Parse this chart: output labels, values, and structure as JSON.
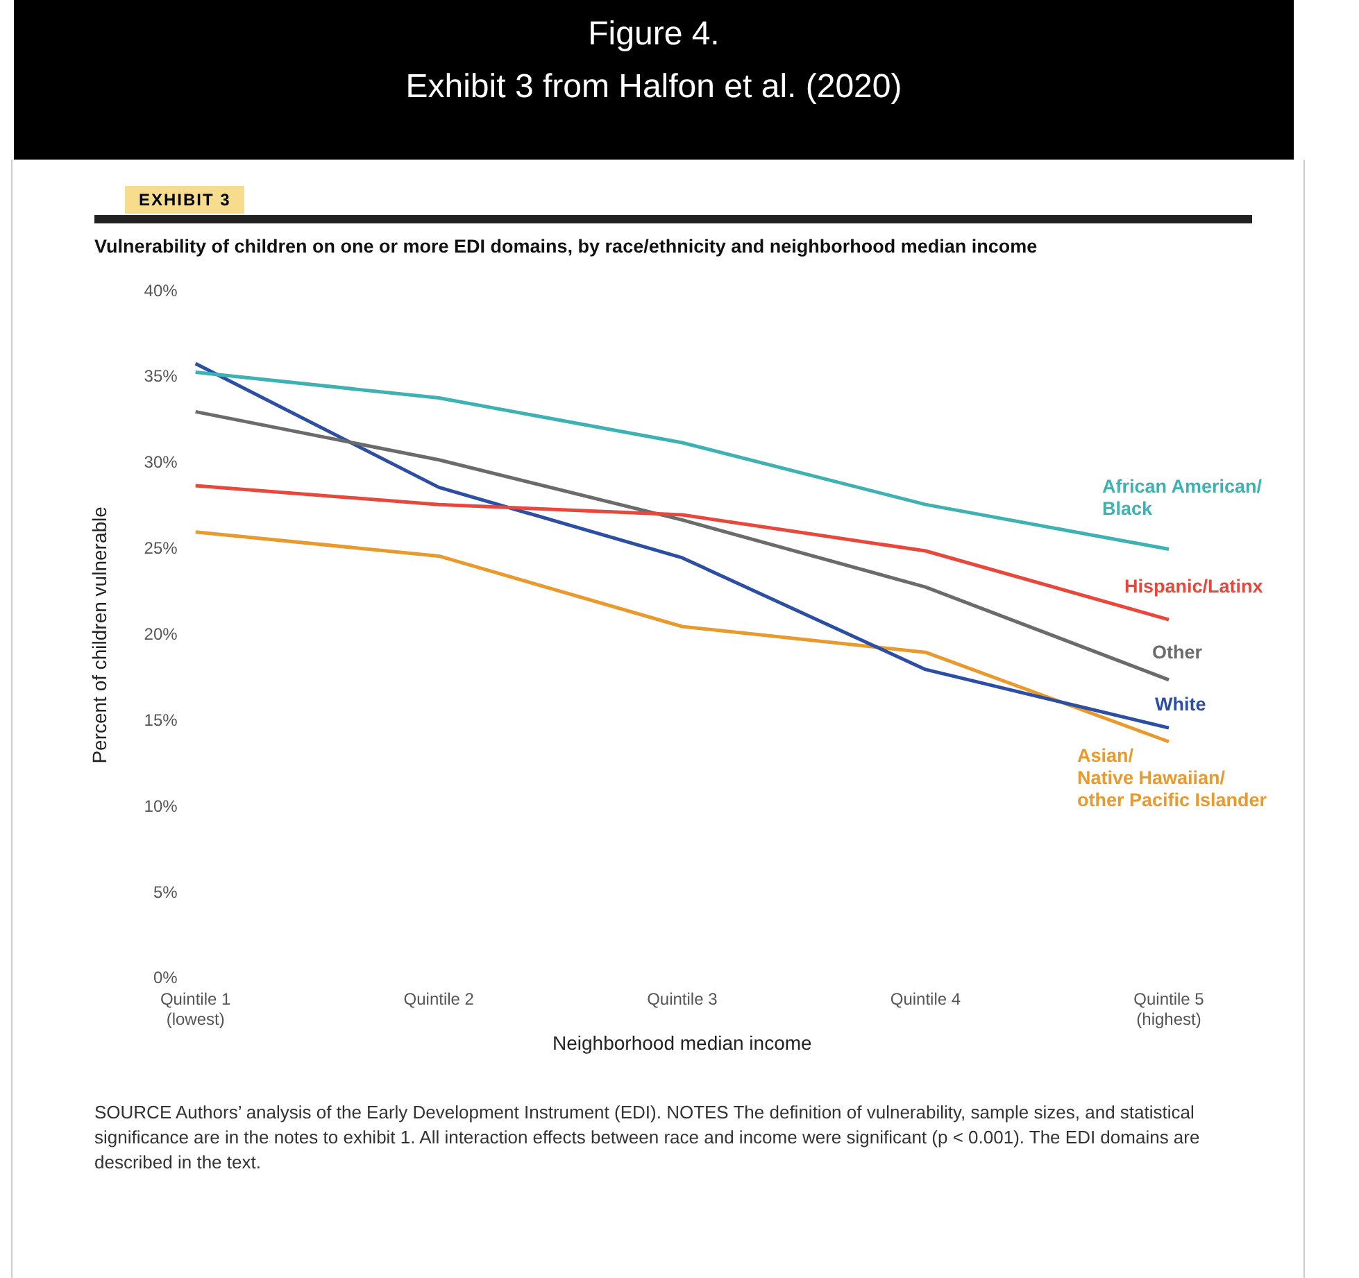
{
  "chart_data": {
    "type": "line",
    "title": "Figure 4.",
    "subtitle": "Exhibit 3 from Halfon et al. (2020)",
    "annotations": [
      "EXHIBIT 3",
      "Vulnerability of children on one or more EDI domains, by race/ethnicity and neighborhood median income",
      "SOURCE Authors’ analysis of the Early Development Instrument (EDI). NOTES The definition of vulnerability, sample sizes, and statistical significance are in the notes to exhibit 1. All interaction effects between race and income were significant (p < 0.001). The EDI domains are described in the text."
    ],
    "xlabel": "Neighborhood median income",
    "ylabel": "Percent of children vulnerable",
    "categories": [
      "Quintile 1\n(lowest)",
      "Quintile 2",
      "Quintile 3",
      "Quintile 4",
      "Quintile 5\n(highest)"
    ],
    "ylim": [
      0,
      40
    ],
    "yticks": [
      {
        "value": 0,
        "label": "0%"
      },
      {
        "value": 5,
        "label": "5%"
      },
      {
        "value": 10,
        "label": "10%"
      },
      {
        "value": 15,
        "label": "15%"
      },
      {
        "value": 20,
        "label": "20%"
      },
      {
        "value": 25,
        "label": "25%"
      },
      {
        "value": 30,
        "label": "30%"
      },
      {
        "value": 35,
        "label": "35%"
      },
      {
        "value": 40,
        "label": "40%"
      }
    ],
    "grid": false,
    "legend": false,
    "marker": "none",
    "line_style": "solid",
    "series": [
      {
        "name": "African American/\nBlack",
        "color": "#3eb1b2",
        "values": [
          35.3,
          33.8,
          31.2,
          27.6,
          25.0
        ]
      },
      {
        "name": "Hispanic/Latinx",
        "color": "#e8473b",
        "values": [
          28.7,
          27.6,
          27.0,
          24.9,
          20.9
        ]
      },
      {
        "name": "Other",
        "color": "#6b6b6b",
        "values": [
          33.0,
          30.2,
          26.7,
          22.8,
          17.4
        ]
      },
      {
        "name": "White",
        "color": "#2c4ea3",
        "values": [
          35.8,
          28.6,
          24.5,
          18.0,
          14.6
        ]
      },
      {
        "name": "Asian/\nNative Hawaiian/\nother Pacific Islander",
        "color": "#e89a2c",
        "values": [
          26.0,
          24.6,
          20.5,
          19.0,
          13.8
        ]
      }
    ]
  }
}
